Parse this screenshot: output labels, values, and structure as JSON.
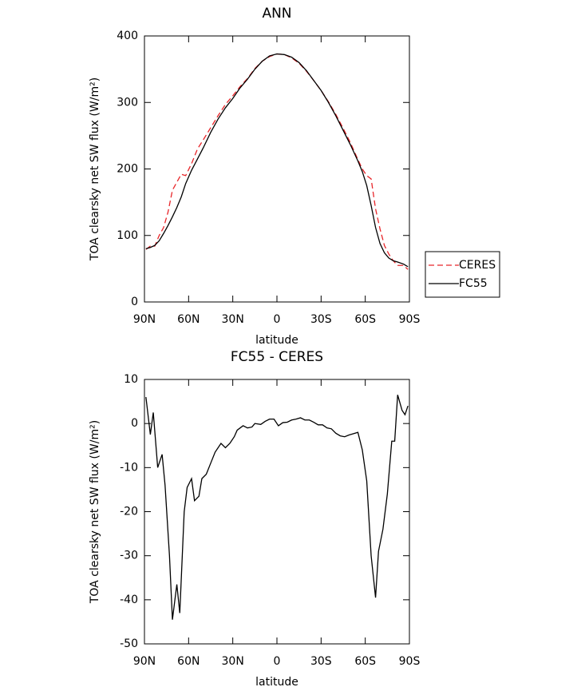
{
  "chart_data": [
    {
      "type": "line",
      "title": "ANN",
      "x_label": "latitude",
      "y_label": "TOA clearsky net SW flux (W/m²)",
      "x": [
        89,
        86,
        83,
        80,
        77,
        74,
        71,
        68,
        65,
        62,
        58,
        54,
        50,
        45,
        40,
        35,
        30,
        25,
        20,
        15,
        10,
        5,
        0,
        -5,
        -10,
        -15,
        -20,
        -25,
        -30,
        -35,
        -40,
        -45,
        -50,
        -55,
        -58,
        -61,
        -64,
        -67,
        -70,
        -73,
        -76,
        -79,
        -82,
        -86,
        -89
      ],
      "series": [
        {
          "name": "CERES",
          "color": "#e8262a",
          "line_style": "dashed",
          "values": [
            79,
            84,
            84,
            100,
            112,
            135,
            168,
            180,
            192,
            190,
            208,
            230,
            244,
            262,
            280,
            297,
            310,
            324,
            336,
            351,
            362,
            369,
            373,
            372,
            367,
            359,
            347,
            333,
            318,
            301,
            282,
            261,
            239,
            214,
            200,
            190,
            185,
            140,
            110,
            85,
            72,
            62,
            55,
            55,
            49
          ]
        },
        {
          "name": "FC55",
          "color": "#000000",
          "line_style": "solid",
          "values": [
            80,
            82,
            85,
            92,
            103,
            115,
            128,
            142,
            158,
            178,
            198,
            215,
            232,
            255,
            275,
            292,
            306,
            322,
            335,
            350,
            362,
            370,
            373,
            372,
            368,
            360,
            348,
            333,
            318,
            300,
            280,
            258,
            236,
            212,
            196,
            175,
            145,
            112,
            88,
            74,
            66,
            62,
            60,
            57,
            53
          ]
        }
      ],
      "xlim": [
        90,
        -90
      ],
      "xticks": [
        {
          "value": 90,
          "label": "90N"
        },
        {
          "value": 60,
          "label": "60N"
        },
        {
          "value": 30,
          "label": "30N"
        },
        0,
        {
          "value": -30,
          "label": "30S"
        },
        {
          "value": -60,
          "label": "60S"
        },
        {
          "value": -90,
          "label": "90S"
        }
      ],
      "ylim": [
        0,
        400
      ],
      "yticks": [
        0,
        100,
        200,
        300,
        400
      ],
      "legend": "right"
    },
    {
      "type": "line",
      "title": "FC55 - CERES",
      "x_label": "latitude",
      "y_label": "TOA clearsky net SW flux (W/m²)",
      "x": [
        89,
        86,
        84,
        81,
        78,
        76,
        73,
        71,
        68,
        66,
        63,
        61,
        58,
        56,
        53,
        51,
        48,
        45,
        42,
        38,
        35,
        32,
        29,
        27,
        23,
        20,
        17,
        15,
        11,
        8,
        5,
        2,
        -1,
        -4,
        -7,
        -10,
        -13,
        -16,
        -19,
        -22,
        -25,
        -28,
        -31,
        -34,
        -37,
        -40,
        -43,
        -46,
        -49,
        -52,
        -55,
        -58,
        -61,
        -64,
        -67,
        -69,
        -72,
        -75,
        -78,
        -80,
        -82,
        -85,
        -87,
        -89
      ],
      "values": [
        6,
        -2.5,
        2.5,
        -10,
        -7,
        -14,
        -30,
        -44.5,
        -36.5,
        -43,
        -20,
        -14.5,
        -12.5,
        -17.5,
        -16.5,
        -12.5,
        -11.5,
        -9,
        -6.5,
        -4.5,
        -5.5,
        -4.5,
        -3,
        -1.5,
        -0.5,
        -1,
        -0.8,
        0,
        -0.2,
        0.5,
        1,
        1,
        -0.5,
        0.2,
        0.3,
        0.8,
        1,
        1.3,
        0.8,
        0.8,
        0.3,
        -0.3,
        -0.3,
        -1,
        -1.2,
        -2.2,
        -2.8,
        -3,
        -2.6,
        -2.3,
        -2,
        -6,
        -13,
        -30,
        -39.5,
        -29,
        -24,
        -16,
        -4,
        -4,
        6.5,
        3,
        2,
        4
      ],
      "color": "#000000",
      "xlim": [
        90,
        -90
      ],
      "xticks": [
        {
          "value": 90,
          "label": "90N"
        },
        {
          "value": 60,
          "label": "60N"
        },
        {
          "value": 30,
          "label": "30N"
        },
        0,
        {
          "value": -30,
          "label": "30S"
        },
        {
          "value": -60,
          "label": "60S"
        },
        {
          "value": -90,
          "label": "90S"
        }
      ],
      "ylim": [
        -50,
        10
      ],
      "yticks": [
        10,
        0,
        -10,
        -20,
        -30,
        -40,
        -50
      ]
    }
  ]
}
